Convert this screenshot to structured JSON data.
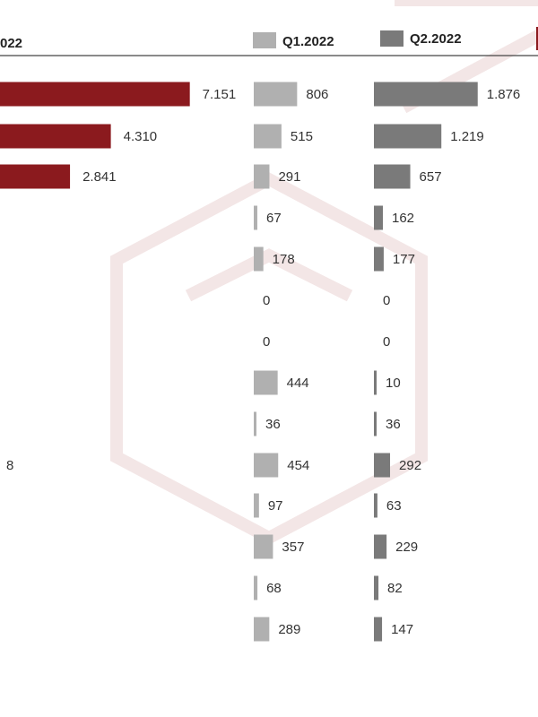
{
  "chart_data": {
    "type": "bar",
    "orientation": "horizontal",
    "series": [
      {
        "name": "022",
        "color": "#8b1a1e",
        "values": [
          7151,
          4310,
          2841,
          null,
          null,
          null,
          null,
          null,
          null,
          8,
          null,
          null,
          null,
          null
        ],
        "labels": [
          "7.151",
          "4.310",
          "2.841",
          "",
          "",
          "",
          "",
          "",
          "",
          "8",
          "",
          "",
          "",
          ""
        ]
      },
      {
        "name": "Q1.2022",
        "color": "#b0b0b0",
        "values": [
          806,
          515,
          291,
          67,
          178,
          0,
          0,
          444,
          36,
          454,
          97,
          357,
          68,
          289
        ],
        "labels": [
          "806",
          "515",
          "291",
          "67",
          "178",
          "0",
          "0",
          "444",
          "36",
          "454",
          "97",
          "357",
          "68",
          "289"
        ]
      },
      {
        "name": "Q2.2022",
        "color": "#7a7a7a",
        "values": [
          1876,
          1219,
          657,
          162,
          177,
          0,
          0,
          10,
          36,
          292,
          63,
          229,
          82,
          147
        ],
        "labels": [
          "1.876",
          "1.219",
          "657",
          "162",
          "177",
          "0",
          "0",
          "10",
          "36",
          "292",
          "63",
          "229",
          "82",
          "147"
        ]
      }
    ],
    "legend": [
      "Q1.2022",
      "Q2.2022"
    ],
    "legend_position": "top"
  }
}
